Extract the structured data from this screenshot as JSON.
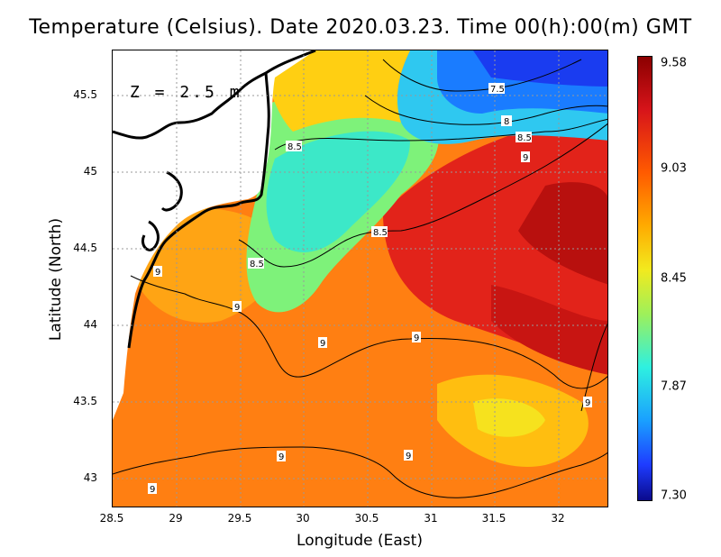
{
  "title": "Temperature (Celsius). Date 2020.03.23. Time 00(h):00(m) GMT",
  "depth_label": "Z = 2.5 m",
  "x_axis": {
    "label": "Longitude (East)",
    "ticks": [
      "28.5",
      "29",
      "29.5",
      "30",
      "30.5",
      "31",
      "31.5",
      "32"
    ]
  },
  "y_axis": {
    "label": "Latitude (North)",
    "ticks": [
      "45.5",
      "45",
      "44.5",
      "44",
      "43.5",
      "43"
    ]
  },
  "colorbar": {
    "ticks": [
      "9.58",
      "9.03",
      "8.45",
      "7.87",
      "7.30"
    ]
  },
  "contour_labels": [
    "7.5",
    "8",
    "8.5",
    "9",
    "8.5",
    "8.5",
    "8.5",
    "9",
    "9",
    "9",
    "9",
    "9",
    "9",
    "9",
    "9"
  ],
  "map": {
    "x_range": [
      28.5,
      32.4
    ],
    "y_range": [
      42.8,
      45.8
    ],
    "grid": true,
    "coastline_color": "#000000"
  }
}
